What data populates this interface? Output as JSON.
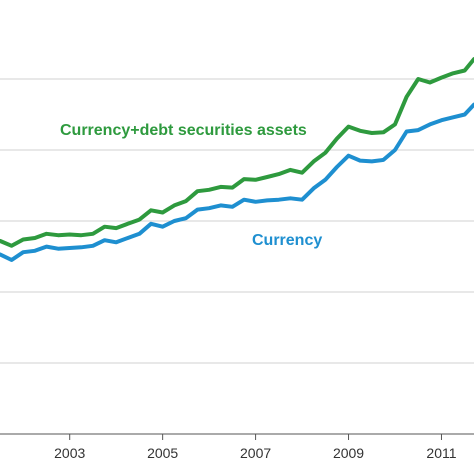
{
  "chart_data": {
    "type": "line",
    "xlim": [
      2001.5,
      2011.7
    ],
    "ylim": [
      0,
      6
    ],
    "grid": true,
    "x_ticks": [
      2003,
      2005,
      2007,
      2009,
      2011
    ],
    "y_gridlines": [
      1,
      2,
      3,
      4,
      5
    ],
    "series": [
      {
        "name": "Currency+debt securities assets",
        "color": "#2e9a3e",
        "points": [
          [
            2001.5,
            2.72
          ],
          [
            2001.75,
            2.65
          ],
          [
            2002.0,
            2.74
          ],
          [
            2002.25,
            2.76
          ],
          [
            2002.5,
            2.82
          ],
          [
            2002.75,
            2.8
          ],
          [
            2003.0,
            2.81
          ],
          [
            2003.25,
            2.8
          ],
          [
            2003.5,
            2.82
          ],
          [
            2003.75,
            2.92
          ],
          [
            2004.0,
            2.9
          ],
          [
            2004.25,
            2.96
          ],
          [
            2004.5,
            3.02
          ],
          [
            2004.75,
            3.15
          ],
          [
            2005.0,
            3.12
          ],
          [
            2005.25,
            3.22
          ],
          [
            2005.5,
            3.28
          ],
          [
            2005.75,
            3.42
          ],
          [
            2006.0,
            3.44
          ],
          [
            2006.25,
            3.48
          ],
          [
            2006.5,
            3.47
          ],
          [
            2006.75,
            3.59
          ],
          [
            2007.0,
            3.58
          ],
          [
            2007.25,
            3.62
          ],
          [
            2007.5,
            3.66
          ],
          [
            2007.75,
            3.72
          ],
          [
            2008.0,
            3.68
          ],
          [
            2008.25,
            3.84
          ],
          [
            2008.5,
            3.96
          ],
          [
            2008.75,
            4.16
          ],
          [
            2009.0,
            4.33
          ],
          [
            2009.25,
            4.27
          ],
          [
            2009.5,
            4.24
          ],
          [
            2009.75,
            4.25
          ],
          [
            2010.0,
            4.36
          ],
          [
            2010.25,
            4.75
          ],
          [
            2010.5,
            5.0
          ],
          [
            2010.75,
            4.95
          ],
          [
            2011.0,
            5.02
          ],
          [
            2011.25,
            5.08
          ],
          [
            2011.5,
            5.12
          ],
          [
            2011.7,
            5.28
          ]
        ]
      },
      {
        "name": "Currency",
        "color": "#1e8fd0",
        "points": [
          [
            2001.5,
            2.53
          ],
          [
            2001.75,
            2.45
          ],
          [
            2002.0,
            2.56
          ],
          [
            2002.25,
            2.58
          ],
          [
            2002.5,
            2.64
          ],
          [
            2002.75,
            2.61
          ],
          [
            2003.0,
            2.62
          ],
          [
            2003.25,
            2.63
          ],
          [
            2003.5,
            2.65
          ],
          [
            2003.75,
            2.73
          ],
          [
            2004.0,
            2.7
          ],
          [
            2004.25,
            2.76
          ],
          [
            2004.5,
            2.82
          ],
          [
            2004.75,
            2.96
          ],
          [
            2005.0,
            2.92
          ],
          [
            2005.25,
            3.0
          ],
          [
            2005.5,
            3.04
          ],
          [
            2005.75,
            3.16
          ],
          [
            2006.0,
            3.18
          ],
          [
            2006.25,
            3.22
          ],
          [
            2006.5,
            3.2
          ],
          [
            2006.75,
            3.3
          ],
          [
            2007.0,
            3.27
          ],
          [
            2007.25,
            3.29
          ],
          [
            2007.5,
            3.3
          ],
          [
            2007.75,
            3.32
          ],
          [
            2008.0,
            3.3
          ],
          [
            2008.25,
            3.46
          ],
          [
            2008.5,
            3.58
          ],
          [
            2008.75,
            3.76
          ],
          [
            2009.0,
            3.92
          ],
          [
            2009.25,
            3.85
          ],
          [
            2009.5,
            3.84
          ],
          [
            2009.75,
            3.86
          ],
          [
            2010.0,
            4.0
          ],
          [
            2010.25,
            4.26
          ],
          [
            2010.5,
            4.28
          ],
          [
            2010.75,
            4.36
          ],
          [
            2011.0,
            4.42
          ],
          [
            2011.25,
            4.46
          ],
          [
            2011.5,
            4.5
          ],
          [
            2011.7,
            4.64
          ]
        ]
      }
    ],
    "annotations": [
      {
        "text": "Currency+debt securities assets",
        "color": "#2e9a3e"
      },
      {
        "text": "Currency",
        "color": "#1e8fd0"
      }
    ]
  }
}
